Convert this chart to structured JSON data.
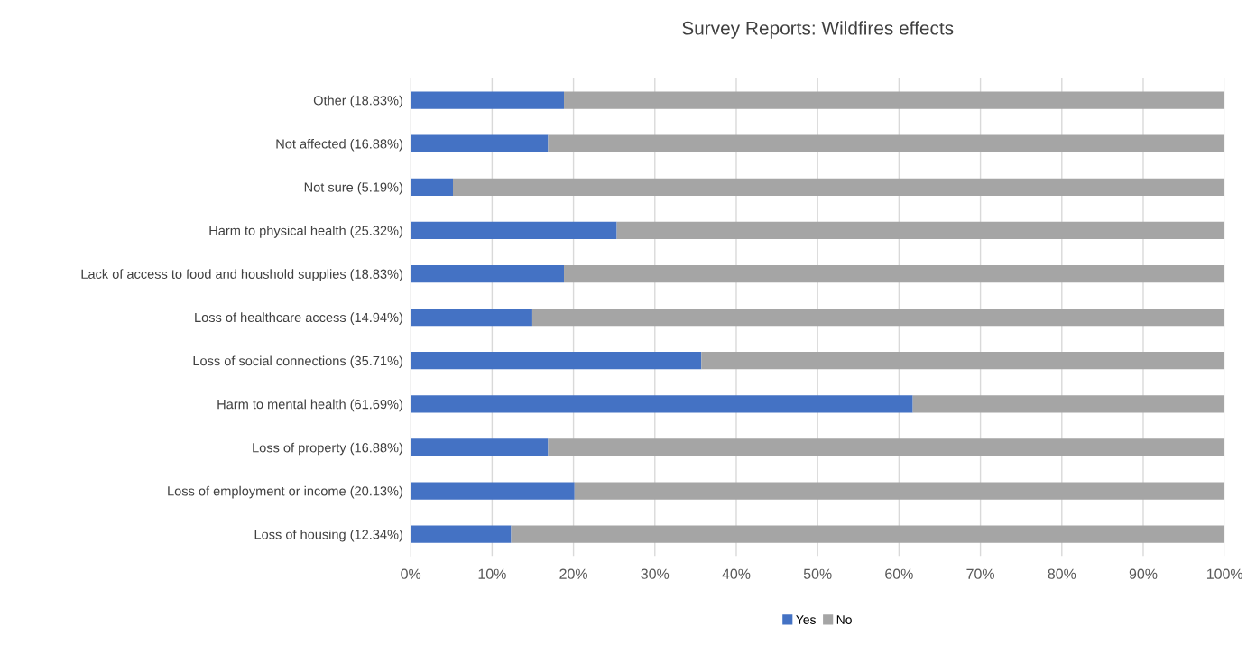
{
  "chart_data": {
    "type": "bar",
    "title": "Survey Reports: Wildfires effects",
    "orientation": "horizontal",
    "stacked": true,
    "categories": [
      "Other (18.83%)",
      "Not affected (16.88%)",
      "Not sure (5.19%)",
      "Harm to physical health (25.32%)",
      "Lack of access to food and houshold supplies (18.83%)",
      "Loss of healthcare access (14.94%)",
      "Loss of social connections (35.71%)",
      "Harm to mental health (61.69%)",
      "Loss of property (16.88%)",
      "Loss of employment or income (20.13%)",
      "Loss of housing (12.34%)"
    ],
    "series": [
      {
        "name": "Yes",
        "color": "#4472c4",
        "values": [
          18.83,
          16.88,
          5.19,
          25.32,
          18.83,
          14.94,
          35.71,
          61.69,
          16.88,
          20.13,
          12.34
        ]
      },
      {
        "name": "No",
        "color": "#a5a5a5",
        "values": [
          81.17,
          83.12,
          94.81,
          74.68,
          81.17,
          85.06,
          64.29,
          38.31,
          83.12,
          79.87,
          87.66
        ]
      }
    ],
    "xlim": [
      0,
      100
    ],
    "xticks": [
      {
        "value": 0,
        "label": "0%"
      },
      {
        "value": 10,
        "label": "10%"
      },
      {
        "value": 20,
        "label": "20%"
      },
      {
        "value": 30,
        "label": "30%"
      },
      {
        "value": 40,
        "label": "40%"
      },
      {
        "value": 50,
        "label": "50%"
      },
      {
        "value": 60,
        "label": "60%"
      },
      {
        "value": 70,
        "label": "70%"
      },
      {
        "value": 80,
        "label": "80%"
      },
      {
        "value": 90,
        "label": "90%"
      },
      {
        "value": 100,
        "label": "100%"
      }
    ],
    "grid": "x",
    "legend": "bottom"
  }
}
